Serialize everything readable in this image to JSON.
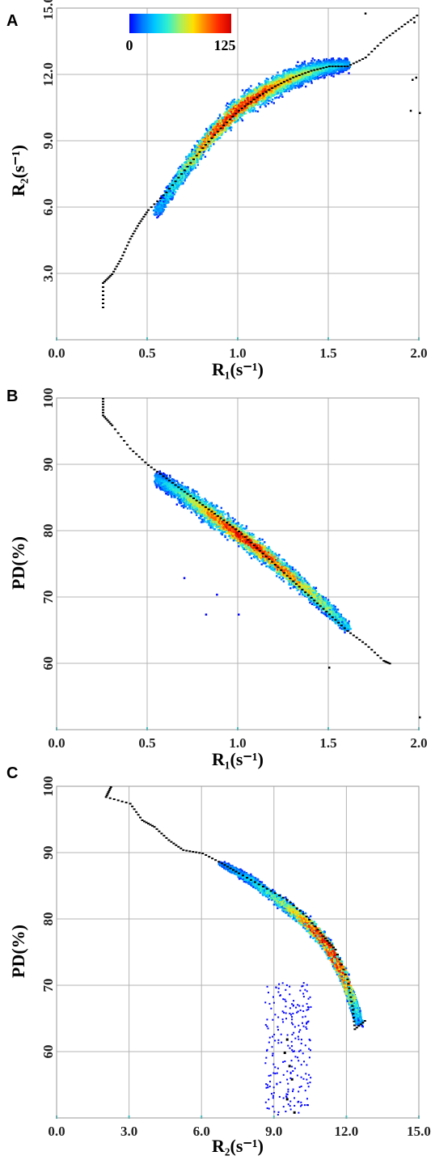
{
  "colors": {
    "grid": "#b4b4b4",
    "frame": "#9a9a9a",
    "trend": "#000000",
    "cmap": [
      "#0000ff",
      "#0078ff",
      "#00c8ff",
      "#30f0d0",
      "#a8f060",
      "#ffe000",
      "#ff8000",
      "#ff2800",
      "#d00000"
    ]
  },
  "colorbar": {
    "min_label": "0",
    "max_label": "125",
    "min": 0,
    "max": 125
  },
  "chart_data": [
    {
      "panel": "A",
      "type": "heatmap",
      "xlabel": "R₁(s⁻¹)",
      "ylabel": "R₂(s⁻¹)",
      "xlim": [
        0.0,
        2.0
      ],
      "ylim": [
        0.0,
        15.0
      ],
      "xticks": [
        0.0,
        0.5,
        1.0,
        1.5,
        2.0
      ],
      "xtick_labels": [
        "0.0",
        "0.5",
        "1.0",
        "1.5",
        "2.0"
      ],
      "yticks": [
        3.0,
        6.0,
        9.0,
        12.0,
        15.0
      ],
      "ytick_labels": [
        "3.0",
        "6.0",
        "9.0",
        "12.0",
        "15.0"
      ],
      "grid": true,
      "cloud": {
        "spine": [
          [
            0.55,
            5.8
          ],
          [
            0.7,
            7.7
          ],
          [
            0.85,
            9.3
          ],
          [
            1.0,
            10.5
          ],
          [
            1.15,
            11.3
          ],
          [
            1.3,
            11.9
          ],
          [
            1.45,
            12.3
          ],
          [
            1.6,
            12.5
          ]
        ],
        "half_width": [
          0.35,
          0.55,
          0.7,
          0.75,
          0.8,
          0.75,
          0.65,
          0.45
        ],
        "peak": [
          0.2,
          0.45,
          0.85,
          1.0,
          0.85,
          0.6,
          0.4,
          0.2
        ]
      },
      "trend": [
        [
          0.25,
          1.5
        ],
        [
          0.25,
          2.6
        ],
        [
          0.3,
          3.0
        ],
        [
          0.35,
          3.7
        ],
        [
          0.4,
          4.6
        ],
        [
          0.45,
          5.3
        ],
        [
          0.5,
          5.9
        ],
        [
          0.6,
          6.7
        ],
        [
          0.7,
          7.7
        ],
        [
          0.8,
          8.7
        ],
        [
          0.9,
          9.6
        ],
        [
          1.0,
          10.4
        ],
        [
          1.1,
          11.0
        ],
        [
          1.2,
          11.5
        ],
        [
          1.3,
          11.9
        ],
        [
          1.4,
          12.2
        ],
        [
          1.5,
          12.4
        ],
        [
          1.6,
          12.4
        ],
        [
          1.7,
          12.8
        ],
        [
          1.8,
          13.6
        ],
        [
          1.9,
          14.2
        ],
        [
          2.0,
          14.8
        ]
      ],
      "outliers": [
        [
          1.7,
          14.8
        ],
        [
          1.96,
          11.8
        ],
        [
          1.98,
          11.9
        ],
        [
          1.95,
          10.4
        ],
        [
          2.0,
          10.3
        ],
        [
          1.97,
          14.4
        ]
      ]
    },
    {
      "panel": "B",
      "type": "heatmap",
      "xlabel": "R₁(s⁻¹)",
      "ylabel": "PD(%)",
      "xlim": [
        0.0,
        2.0
      ],
      "ylim": [
        50.0,
        100.0
      ],
      "xticks": [
        0.0,
        0.5,
        1.0,
        1.5,
        2.0
      ],
      "xtick_labels": [
        "0.0",
        "0.5",
        "1.0",
        "1.5",
        "2.0"
      ],
      "yticks": [
        60,
        70,
        80,
        90,
        100
      ],
      "ytick_labels": [
        "60",
        "70",
        "80",
        "90",
        "100"
      ],
      "grid": true,
      "cloud": {
        "spine": [
          [
            0.55,
            88.0
          ],
          [
            0.7,
            85.5
          ],
          [
            0.85,
            82.5
          ],
          [
            1.0,
            79.5
          ],
          [
            1.15,
            76.5
          ],
          [
            1.3,
            73.0
          ],
          [
            1.45,
            69.5
          ],
          [
            1.6,
            65.5
          ]
        ],
        "half_width": [
          1.8,
          2.4,
          2.6,
          2.4,
          2.2,
          1.9,
          1.6,
          1.2
        ],
        "peak": [
          0.2,
          0.45,
          0.75,
          1.0,
          0.9,
          0.75,
          0.55,
          0.3
        ]
      },
      "trend": [
        [
          0.25,
          100
        ],
        [
          0.25,
          97.5
        ],
        [
          0.3,
          96
        ],
        [
          0.4,
          92.5
        ],
        [
          0.5,
          90
        ],
        [
          0.6,
          88
        ],
        [
          0.7,
          86
        ],
        [
          0.8,
          84
        ],
        [
          0.9,
          82
        ],
        [
          1.0,
          80
        ],
        [
          1.1,
          77.5
        ],
        [
          1.2,
          75
        ],
        [
          1.3,
          72.5
        ],
        [
          1.4,
          70
        ],
        [
          1.5,
          67.5
        ],
        [
          1.6,
          65
        ],
        [
          1.7,
          63
        ],
        [
          1.8,
          60.5
        ],
        [
          1.84,
          60
        ]
      ],
      "outliers": [
        [
          1.0,
          67.5
        ],
        [
          0.82,
          67.5
        ],
        [
          1.5,
          59.5
        ],
        [
          2.0,
          52
        ],
        [
          0.7,
          73
        ],
        [
          0.88,
          70.5
        ]
      ]
    },
    {
      "panel": "C",
      "type": "heatmap",
      "xlabel": "R₂(s⁻¹)",
      "ylabel": "PD(%)",
      "xlim": [
        0.0,
        15.0
      ],
      "ylim": [
        50.0,
        100.0
      ],
      "xticks": [
        0.0,
        3.0,
        6.0,
        9.0,
        12.0,
        15.0
      ],
      "xtick_labels": [
        "0.0",
        "3.0",
        "6.0",
        "9.0",
        "12.0",
        "15.0"
      ],
      "yticks": [
        60,
        70,
        80,
        90,
        100
      ],
      "ytick_labels": [
        "60",
        "70",
        "80",
        "90",
        "100"
      ],
      "grid": true,
      "cloud": {
        "spine": [
          [
            6.8,
            88.5
          ],
          [
            8.0,
            86.0
          ],
          [
            9.5,
            82.0
          ],
          [
            10.5,
            79.0
          ],
          [
            11.2,
            76.0
          ],
          [
            11.8,
            72.0
          ],
          [
            12.2,
            68.0
          ],
          [
            12.5,
            64.5
          ]
        ],
        "half_width": [
          0.5,
          0.9,
          1.3,
          1.5,
          1.5,
          1.3,
          1.1,
          0.8
        ],
        "peak": [
          0.15,
          0.3,
          0.55,
          0.9,
          1.0,
          0.85,
          0.55,
          0.25
        ]
      },
      "trend": [
        [
          2.2,
          100
        ],
        [
          2.0,
          98.5
        ],
        [
          3.0,
          97.5
        ],
        [
          3.5,
          95
        ],
        [
          4.0,
          94
        ],
        [
          4.6,
          92
        ],
        [
          5.2,
          90.5
        ],
        [
          6.0,
          90
        ],
        [
          6.8,
          88.5
        ],
        [
          7.5,
          87
        ],
        [
          8.5,
          85
        ],
        [
          9.5,
          83
        ],
        [
          10.3,
          80.5
        ],
        [
          11.0,
          77.5
        ],
        [
          11.5,
          75.5
        ],
        [
          12.0,
          71
        ],
        [
          12.2,
          67
        ],
        [
          12.3,
          63.5
        ],
        [
          12.8,
          65
        ]
      ],
      "tail": [
        [
          9.5,
          62
        ],
        [
          9.4,
          60
        ],
        [
          9.6,
          58
        ],
        [
          9.7,
          56
        ],
        [
          9.5,
          53
        ],
        [
          9.8,
          51
        ]
      ]
    }
  ],
  "panels": [
    {
      "label": "A"
    },
    {
      "label": "B"
    },
    {
      "label": "C"
    }
  ]
}
